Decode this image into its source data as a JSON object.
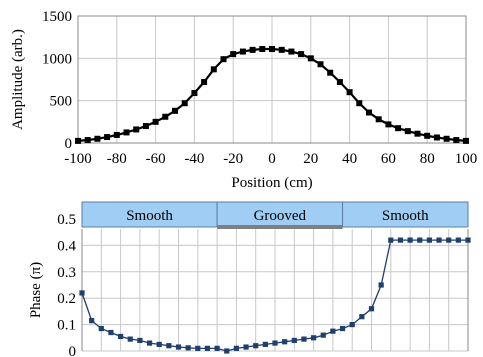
{
  "chart_data": [
    {
      "type": "line",
      "xlabel": "Position (cm)",
      "ylabel": "Amplitude (arb.)",
      "xlim": [
        -100,
        100
      ],
      "ylim": [
        0,
        1500
      ],
      "xticks": [
        -100,
        -80,
        -60,
        -40,
        -20,
        0,
        20,
        40,
        60,
        80,
        100
      ],
      "yticks": [
        0,
        500,
        1000,
        1500
      ],
      "grid": true,
      "color": "#000000",
      "x": [
        -100,
        -95,
        -90,
        -85,
        -80,
        -75,
        -70,
        -65,
        -60,
        -55,
        -50,
        -45,
        -40,
        -35,
        -30,
        -25,
        -20,
        -15,
        -10,
        -5,
        0,
        5,
        10,
        15,
        20,
        25,
        30,
        35,
        40,
        45,
        50,
        55,
        60,
        65,
        70,
        75,
        80,
        85,
        90,
        95,
        100
      ],
      "y": [
        25,
        35,
        50,
        70,
        95,
        125,
        160,
        200,
        250,
        310,
        380,
        470,
        590,
        720,
        870,
        990,
        1050,
        1080,
        1100,
        1110,
        1110,
        1100,
        1080,
        1050,
        1000,
        930,
        830,
        720,
        600,
        470,
        360,
        280,
        220,
        175,
        140,
        110,
        85,
        65,
        50,
        35,
        25
      ]
    },
    {
      "type": "line",
      "xlabel": "",
      "ylabel": "Phase (π)",
      "xlim": [
        -100,
        100
      ],
      "ylim": [
        0,
        0.55
      ],
      "yticks": [
        0,
        0.1,
        0.2,
        0.3,
        0.4,
        0.5
      ],
      "ytick_labels": [
        "0",
        "0.1",
        "0.2",
        "0.3",
        "0.4",
        "0.5"
      ],
      "grid": true,
      "color": "#1f3f6e",
      "regions": [
        {
          "label": "Smooth",
          "from": -100,
          "to": -30,
          "color": "#9fcdf3"
        },
        {
          "label": "Grooved",
          "from": -30,
          "to": 35,
          "color": "#9fcdf3"
        },
        {
          "label": "Smooth",
          "from": 35,
          "to": 100,
          "color": "#9fcdf3"
        }
      ],
      "x": [
        -100,
        -95,
        -90,
        -85,
        -80,
        -75,
        -70,
        -65,
        -60,
        -55,
        -50,
        -45,
        -40,
        -35,
        -30,
        -25,
        -20,
        -15,
        -10,
        -5,
        0,
        5,
        10,
        15,
        20,
        25,
        30,
        35,
        40,
        45,
        50,
        55,
        60,
        65,
        70,
        75,
        80,
        85,
        90,
        95,
        100
      ],
      "y": [
        0.22,
        0.115,
        0.085,
        0.07,
        0.055,
        0.045,
        0.04,
        0.03,
        0.025,
        0.02,
        0.015,
        0.012,
        0.01,
        0.01,
        0.01,
        0.0,
        0.01,
        0.015,
        0.02,
        0.025,
        0.03,
        0.035,
        0.04,
        0.045,
        0.05,
        0.06,
        0.075,
        0.085,
        0.1,
        0.13,
        0.16,
        0.25,
        0.42,
        0.42,
        0.42,
        0.42,
        0.42,
        0.42,
        0.42,
        0.42,
        0.42
      ]
    }
  ]
}
